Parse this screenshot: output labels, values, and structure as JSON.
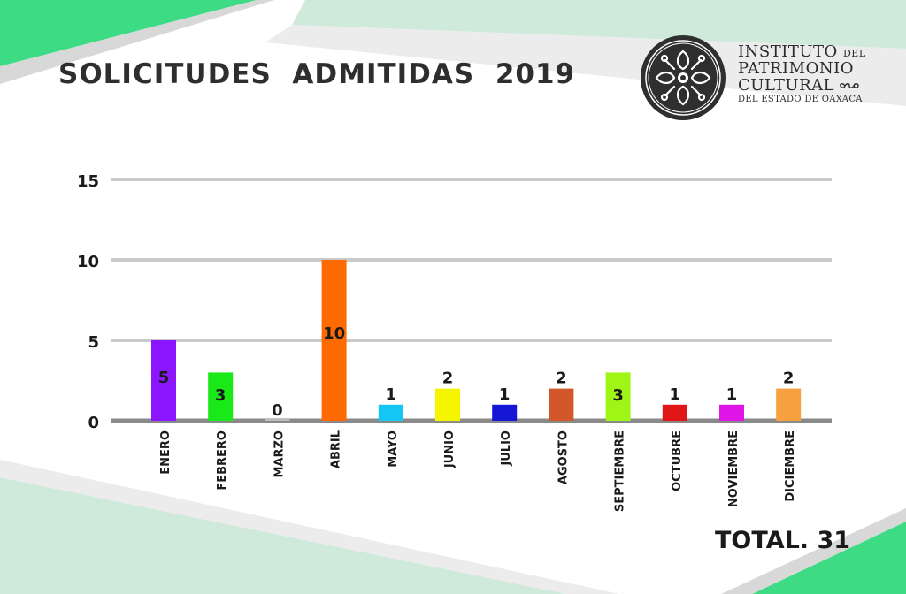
{
  "header": {
    "title": "SOLICITUDES  ADMITIDAS  2019"
  },
  "logo": {
    "line1": "INSTITUTO",
    "line1_small": "DEL",
    "line2": "PATRIMONIO",
    "line3": "CULTURAL",
    "line4": "DEL ESTADO DE OAXACA",
    "emblem_icon": "flower-emblem-icon"
  },
  "colors": {
    "accent_green": "#3ddc84",
    "pale_green": "#cfeadb",
    "gridline": "#c9c9c9",
    "baseline": "#8a8a8a"
  },
  "chart_data": {
    "type": "bar",
    "categories": [
      "ENERO",
      "FEBRERO",
      "MARZO",
      "ABRIL",
      "MAYO",
      "JUNIO",
      "JULIO",
      "AGOSTO",
      "SEPTIEMBRE",
      "OCTUBRE",
      "NOVIEMBRE",
      "DICIEMBRE"
    ],
    "values": [
      5,
      3,
      0,
      10,
      1,
      2,
      1,
      2,
      3,
      1,
      1,
      2
    ],
    "data_labels": [
      "5",
      "3",
      "0",
      "10",
      "1",
      "2",
      "1",
      "2",
      "3",
      "1",
      "1",
      "2"
    ],
    "colors": [
      "#8b16ff",
      "#19e819",
      "#bdbdbd",
      "#ff6a00",
      "#16c6f2",
      "#f5f500",
      "#1616d6",
      "#d2582c",
      "#9ff516",
      "#e01616",
      "#e016e8",
      "#f7a040"
    ],
    "yticks": [
      0,
      5,
      10,
      15
    ],
    "ylim": [
      0,
      15
    ],
    "grid": true,
    "legend": "none"
  },
  "total_label": "TOTAL. 31"
}
